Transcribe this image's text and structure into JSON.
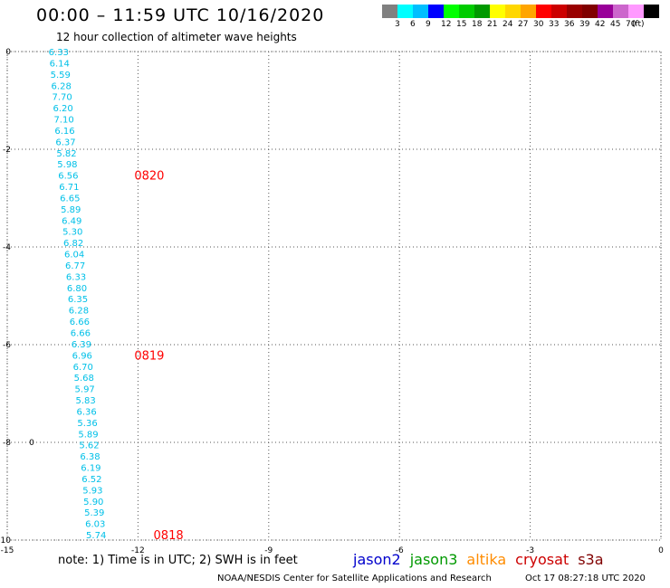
{
  "header": {
    "title": "00:00 – 11:59 UTC 10/16/2020",
    "subtitle": "12 hour collection of altimeter wave heights"
  },
  "legend": {
    "unit": "(ft)",
    "bins": [
      {
        "label": "",
        "color": "#808080"
      },
      {
        "label": "3",
        "color": "#00ffff"
      },
      {
        "label": "6",
        "color": "#00bfff"
      },
      {
        "label": "9",
        "color": "#0000ff"
      },
      {
        "label": "12",
        "color": "#00ff00"
      },
      {
        "label": "15",
        "color": "#00cc00"
      },
      {
        "label": "18",
        "color": "#009900"
      },
      {
        "label": "21",
        "color": "#ffff00"
      },
      {
        "label": "24",
        "color": "#ffd700"
      },
      {
        "label": "27",
        "color": "#ffa500"
      },
      {
        "label": "30",
        "color": "#ff0000"
      },
      {
        "label": "33",
        "color": "#cc0000"
      },
      {
        "label": "36",
        "color": "#990000"
      },
      {
        "label": "39",
        "color": "#800000"
      },
      {
        "label": "42",
        "color": "#990099"
      },
      {
        "label": "45",
        "color": "#cc66cc"
      },
      {
        "label": "70",
        "color": "#ff99ff"
      },
      {
        "label": "",
        "color": "#000000"
      }
    ]
  },
  "chart_data": {
    "type": "scatter",
    "xlim": [
      -15,
      0
    ],
    "ylim": [
      -10,
      0
    ],
    "x_ticks": [
      "-15",
      "-12",
      "-9",
      "-6",
      "-3",
      "0"
    ],
    "y_ticks": [
      "0",
      "-2",
      "-4",
      "-6",
      "-8",
      "-10"
    ],
    "grid": true,
    "label_color": "#00c0e8",
    "time_color": "#ff0000",
    "points": [
      {
        "x": -13.82,
        "y": 0.0,
        "label": "6.33"
      },
      {
        "x": -13.8,
        "y": -0.23,
        "label": "6.14"
      },
      {
        "x": -13.78,
        "y": -0.46,
        "label": "5.59"
      },
      {
        "x": -13.76,
        "y": -0.69,
        "label": "6.28"
      },
      {
        "x": -13.74,
        "y": -0.92,
        "label": "7.70"
      },
      {
        "x": -13.72,
        "y": -1.15,
        "label": "6.20"
      },
      {
        "x": -13.7,
        "y": -1.38,
        "label": "7.10"
      },
      {
        "x": -13.68,
        "y": -1.61,
        "label": "6.16"
      },
      {
        "x": -13.66,
        "y": -1.84,
        "label": "6.37"
      },
      {
        "x": -13.64,
        "y": -2.07,
        "label": "5.82"
      },
      {
        "x": -13.62,
        "y": -2.3,
        "label": "5.98"
      },
      {
        "x": -13.6,
        "y": -2.53,
        "label": "6.56"
      },
      {
        "x": -13.58,
        "y": -2.76,
        "label": "6.71"
      },
      {
        "x": -13.56,
        "y": -2.99,
        "label": "6.65"
      },
      {
        "x": -13.54,
        "y": -3.22,
        "label": "5.89"
      },
      {
        "x": -13.52,
        "y": -3.45,
        "label": "6.49"
      },
      {
        "x": -13.5,
        "y": -3.68,
        "label": "5.30"
      },
      {
        "x": -13.48,
        "y": -3.91,
        "label": "6.82"
      },
      {
        "x": -13.46,
        "y": -4.14,
        "label": "6.04"
      },
      {
        "x": -13.44,
        "y": -4.37,
        "label": "6.77"
      },
      {
        "x": -13.42,
        "y": -4.6,
        "label": "6.33"
      },
      {
        "x": -13.4,
        "y": -4.83,
        "label": "6.80"
      },
      {
        "x": -13.38,
        "y": -5.06,
        "label": "6.35"
      },
      {
        "x": -13.36,
        "y": -5.29,
        "label": "6.28"
      },
      {
        "x": -13.34,
        "y": -5.52,
        "label": "6.66"
      },
      {
        "x": -13.32,
        "y": -5.75,
        "label": "6.66"
      },
      {
        "x": -13.3,
        "y": -5.98,
        "label": "6.39"
      },
      {
        "x": -13.28,
        "y": -6.21,
        "label": "6.96"
      },
      {
        "x": -13.26,
        "y": -6.44,
        "label": "6.70"
      },
      {
        "x": -13.24,
        "y": -6.67,
        "label": "5.68"
      },
      {
        "x": -13.22,
        "y": -6.9,
        "label": "5.97"
      },
      {
        "x": -13.2,
        "y": -7.13,
        "label": "5.83"
      },
      {
        "x": -13.18,
        "y": -7.36,
        "label": "6.36"
      },
      {
        "x": -13.16,
        "y": -7.59,
        "label": "5.36"
      },
      {
        "x": -13.14,
        "y": -7.82,
        "label": "5.89"
      },
      {
        "x": -13.12,
        "y": -8.05,
        "label": "5.62"
      },
      {
        "x": -13.1,
        "y": -8.28,
        "label": "6.38"
      },
      {
        "x": -13.08,
        "y": -8.51,
        "label": "6.19"
      },
      {
        "x": -13.06,
        "y": -8.74,
        "label": "6.52"
      },
      {
        "x": -13.04,
        "y": -8.97,
        "label": "5.93"
      },
      {
        "x": -13.02,
        "y": -9.2,
        "label": "5.90"
      },
      {
        "x": -13.0,
        "y": -9.43,
        "label": "5.39"
      },
      {
        "x": -12.98,
        "y": -9.66,
        "label": "6.03"
      },
      {
        "x": -12.96,
        "y": -9.89,
        "label": "5.74"
      }
    ],
    "time_labels": [
      {
        "x": -11.74,
        "y": -2.53,
        "label": "0820"
      },
      {
        "x": -11.74,
        "y": -6.21,
        "label": "0819"
      },
      {
        "x": -11.3,
        "y": -9.89,
        "label": "0818"
      }
    ],
    "markers": [
      {
        "x": -14.44,
        "y": -8.0,
        "label": "0"
      }
    ]
  },
  "footer": {
    "note": "note: 1) Time is in UTC; 2) SWH is in feet",
    "credit": "NOAA/NESDIS Center for Satellite Applications and Research",
    "generated": "Oct 17 08:27:18 UTC 2020",
    "missions": [
      {
        "name": "jason2",
        "color": "#0000cc"
      },
      {
        "name": "jason3",
        "color": "#009900"
      },
      {
        "name": "altika",
        "color": "#ff8c00"
      },
      {
        "name": "cryosat",
        "color": "#cc0000"
      },
      {
        "name": "s3a",
        "color": "#800000"
      }
    ]
  }
}
